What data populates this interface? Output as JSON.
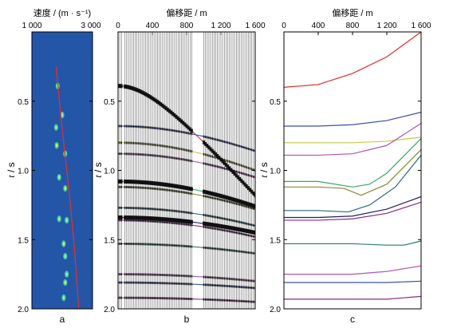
{
  "panels": {
    "a": {
      "top_label": "速度 / (m · s⁻¹)",
      "x_ticks": [
        "1 000",
        "3 000"
      ],
      "y_label_t": "t",
      "y_label_s": " / s",
      "y_ticks": [
        "0.5",
        "1.0",
        "1.5",
        "2.0"
      ],
      "caption": "a",
      "colors": {
        "background": "#2456a8",
        "spots": "#4fd39a",
        "curve": "#e23030"
      }
    },
    "b": {
      "top_label": "偏移距 / m",
      "x_ticks": [
        "0",
        "400",
        "800",
        "1 200",
        "1 600"
      ],
      "y_label_t": "t",
      "y_label_s": " / s",
      "y_ticks": [
        "0.5",
        "1.0",
        "1.5",
        "2.0"
      ],
      "caption": "b"
    },
    "c": {
      "top_label": "偏移距 / m",
      "x_ticks": [
        "0",
        "400",
        "800",
        "1 200",
        "1 600"
      ],
      "y_label_t": "t",
      "y_label_s": " / s",
      "y_ticks": [
        "0.5",
        "1.0",
        "1.5",
        "2.0"
      ],
      "caption": "c"
    }
  },
  "chart_data": [
    {
      "type": "heatmap",
      "panel": "a",
      "xlabel": "速度 / (m · s⁻¹)",
      "ylabel": "t / s",
      "xlim": [
        1000,
        3000
      ],
      "ylim": [
        0,
        2.0
      ],
      "velocity_curve": {
        "color": "#e23030",
        "points": [
          [
            1800,
            0.25
          ],
          [
            1950,
            0.6
          ],
          [
            2100,
            0.9
          ],
          [
            2250,
            1.2
          ],
          [
            2400,
            1.55
          ],
          [
            2550,
            2.0
          ]
        ]
      },
      "semblance_peaks": [
        {
          "v": 1850,
          "t": 0.39
        },
        {
          "v": 2000,
          "t": 0.6
        },
        {
          "v": 1800,
          "t": 0.69
        },
        {
          "v": 1820,
          "t": 0.82
        },
        {
          "v": 2100,
          "t": 0.88
        },
        {
          "v": 1900,
          "t": 1.05
        },
        {
          "v": 2100,
          "t": 1.13
        },
        {
          "v": 1900,
          "t": 1.35
        },
        {
          "v": 2150,
          "t": 1.36
        },
        {
          "v": 2050,
          "t": 1.53
        },
        {
          "v": 2100,
          "t": 1.62
        },
        {
          "v": 2150,
          "t": 1.75
        },
        {
          "v": 2100,
          "t": 1.81
        },
        {
          "v": 2050,
          "t": 1.92
        }
      ]
    },
    {
      "type": "line",
      "panel": "b",
      "xlabel": "偏移距 / m",
      "ylabel": "t / s",
      "xlim": [
        0,
        1600
      ],
      "ylim": [
        0,
        2.0
      ],
      "trace_gaps": [
        [
          50,
          70
        ],
        [
          870,
          980
        ]
      ],
      "picked_events": [
        {
          "t0": 0.39,
          "t1600": 1.18,
          "color": "#e02a2a"
        },
        {
          "t0": 0.68,
          "t1600": 0.86,
          "color": "#3a4fa8"
        },
        {
          "t0": 0.8,
          "t1600": 1.0,
          "color": "#c9c94a"
        },
        {
          "t0": 0.88,
          "t1600": 1.05,
          "color": "#b055b0"
        },
        {
          "t0": 1.08,
          "t1600": 1.26,
          "color": "#38a86a"
        },
        {
          "t0": 1.12,
          "t1600": 1.28,
          "color": "#8a8a3a"
        },
        {
          "t0": 1.27,
          "t1600": 1.4,
          "color": "#2a6a7a"
        },
        {
          "t0": 1.34,
          "t1600": 1.45,
          "color": "#202060"
        },
        {
          "t0": 1.36,
          "t1600": 1.48,
          "color": "#8a2a8a"
        },
        {
          "t0": 1.53,
          "t1600": 1.6,
          "color": "#2a7a6a"
        },
        {
          "t0": 1.75,
          "t1600": 1.8,
          "color": "#b055b0"
        },
        {
          "t0": 1.81,
          "t1600": 1.85,
          "color": "#3a4fa8"
        },
        {
          "t0": 1.92,
          "t1600": 1.95,
          "color": "#8a2a8a"
        }
      ]
    },
    {
      "type": "line",
      "panel": "c",
      "xlabel": "偏移距 / m",
      "ylabel": "t / s",
      "xlim": [
        0,
        1600
      ],
      "ylim": [
        0,
        2.0
      ],
      "series": [
        {
          "color": "#e02a2a",
          "x": [
            0,
            400,
            800,
            1200,
            1600
          ],
          "t": [
            0.4,
            0.38,
            0.3,
            0.18,
            0.0
          ]
        },
        {
          "color": "#3a4fa8",
          "x": [
            0,
            400,
            800,
            1200,
            1600
          ],
          "t": [
            0.68,
            0.68,
            0.67,
            0.64,
            0.58
          ]
        },
        {
          "color": "#c9c94a",
          "x": [
            0,
            400,
            800,
            1200,
            1600
          ],
          "t": [
            0.8,
            0.8,
            0.8,
            0.79,
            0.76
          ]
        },
        {
          "color": "#b055b0",
          "x": [
            0,
            400,
            800,
            1200,
            1600
          ],
          "t": [
            0.89,
            0.89,
            0.88,
            0.82,
            0.66
          ]
        },
        {
          "color": "#38a86a",
          "x": [
            0,
            400,
            800,
            1000,
            1200,
            1600
          ],
          "t": [
            1.08,
            1.08,
            1.12,
            1.1,
            1.02,
            0.77
          ]
        },
        {
          "color": "#8a8a3a",
          "x": [
            0,
            400,
            700,
            900,
            1200,
            1600
          ],
          "t": [
            1.12,
            1.12,
            1.13,
            1.18,
            1.1,
            0.85
          ]
        },
        {
          "color": "#2a6a7a",
          "x": [
            0,
            400,
            750,
            1000,
            1300,
            1600
          ],
          "t": [
            1.29,
            1.29,
            1.3,
            1.25,
            1.12,
            0.89
          ]
        },
        {
          "color": "#202060",
          "x": [
            0,
            400,
            800,
            1200,
            1600
          ],
          "t": [
            1.34,
            1.34,
            1.33,
            1.28,
            1.19
          ]
        },
        {
          "color": "#8a2a8a",
          "x": [
            0,
            400,
            800,
            1200,
            1600
          ],
          "t": [
            1.36,
            1.36,
            1.35,
            1.31,
            1.23
          ]
        },
        {
          "color": "#2a7a6a",
          "x": [
            0,
            400,
            800,
            1200,
            1400,
            1600
          ],
          "t": [
            1.53,
            1.53,
            1.53,
            1.54,
            1.54,
            1.51
          ]
        },
        {
          "color": "#b055b0",
          "x": [
            0,
            400,
            800,
            1200,
            1600
          ],
          "t": [
            1.75,
            1.75,
            1.75,
            1.73,
            1.69
          ]
        },
        {
          "color": "#3a4fa8",
          "x": [
            0,
            400,
            800,
            1200,
            1600
          ],
          "t": [
            1.81,
            1.81,
            1.81,
            1.81,
            1.8
          ]
        },
        {
          "color": "#8a2a8a",
          "x": [
            0,
            400,
            800,
            1200,
            1600
          ],
          "t": [
            1.93,
            1.93,
            1.93,
            1.93,
            1.91
          ]
        }
      ]
    }
  ]
}
